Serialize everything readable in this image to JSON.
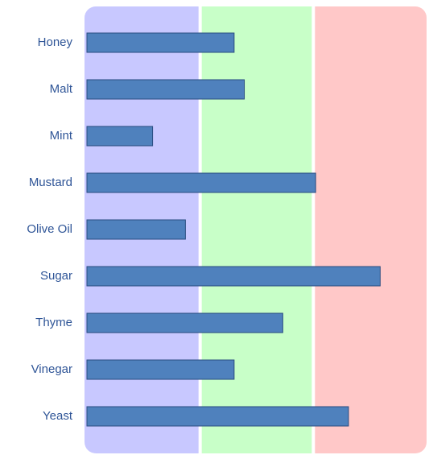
{
  "chart_data": {
    "type": "bar",
    "orientation": "horizontal",
    "categories": [
      "Honey",
      "Malt",
      "Mint",
      "Mustard",
      "Olive Oil",
      "Sugar",
      "Thyme",
      "Vinegar",
      "Yeast"
    ],
    "values": [
      130,
      139,
      58,
      202,
      87,
      259,
      173,
      130,
      231
    ],
    "color": "#4f81bd",
    "xlim": [
      0,
      300
    ],
    "bands": [
      {
        "from": 0,
        "to": 100,
        "color": "#c8c8ff"
      },
      {
        "from": 100,
        "to": 200,
        "color": "#c8ffc8"
      },
      {
        "from": 200,
        "to": 300,
        "color": "#ffc8c8"
      }
    ]
  }
}
